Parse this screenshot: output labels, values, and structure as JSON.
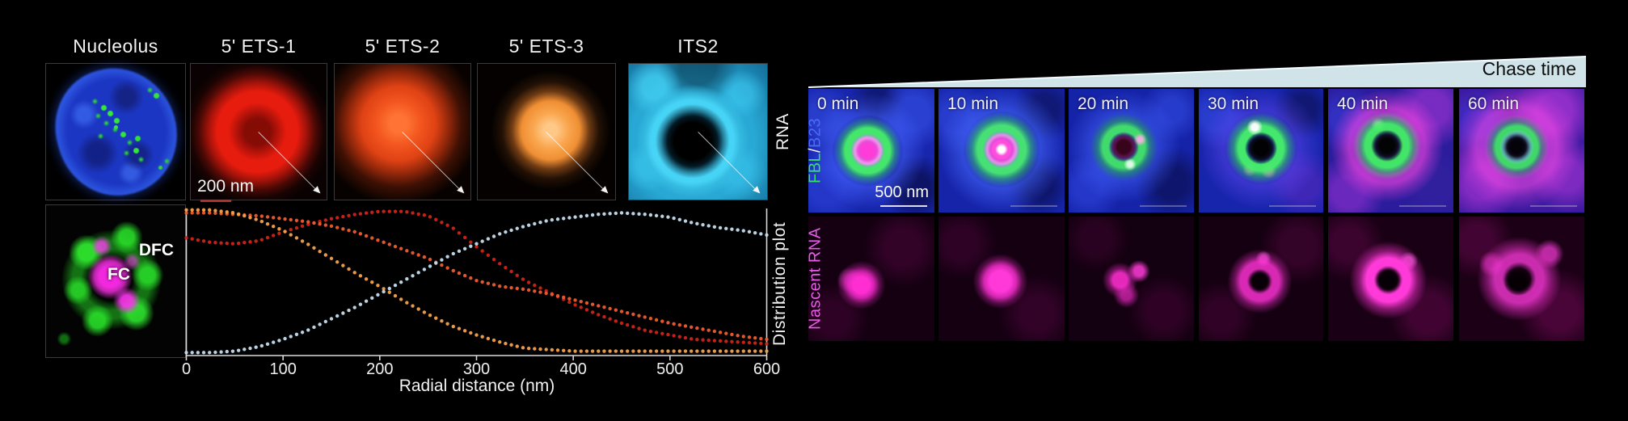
{
  "left": {
    "panel_titles": [
      "Nucleolus",
      "5' ETS-1",
      "5' ETS-2",
      "5' ETS-3",
      "ITS2"
    ],
    "row_labels": {
      "top": "RNA",
      "bottom": "Distribution plot"
    },
    "scale_bar_label": "200 nm",
    "inset_labels": {
      "dfc": "DFC",
      "fc": "FC"
    }
  },
  "right": {
    "header": "Chase time",
    "time_labels": [
      "0 min",
      "10 min",
      "20 min",
      "30 min",
      "40 min",
      "60 min"
    ],
    "top_row_label": {
      "part1": "FBL",
      "sep": " / ",
      "part2": "B23"
    },
    "bottom_row_label": "Nascent RNA",
    "scale_bar_label": "500 nm"
  },
  "colors": {
    "fbl_green": "#35e065",
    "b23_blue": "#4a6cf5",
    "nascent_magenta": "#e85ae8",
    "wedge_fill": "#cfe3e8",
    "scale_bar_200nm": "#b03228",
    "ets1_red": "#cf2318",
    "ets2_redorange": "#ee5b2e",
    "ets3_orange": "#f5a149",
    "its2_cyan": "#c3dcec"
  },
  "chart_data": {
    "type": "line",
    "style": "dotted",
    "title": "Distribution plot",
    "xlabel": "Radial distance (nm)",
    "ylabel": "",
    "xlim": [
      0,
      600
    ],
    "ylim": [
      0,
      1
    ],
    "xticks": [
      0,
      100,
      200,
      300,
      400,
      500,
      600
    ],
    "yticks": [],
    "grid": false,
    "legend": false,
    "x_nm": [
      0,
      25,
      50,
      75,
      100,
      125,
      150,
      175,
      200,
      225,
      250,
      275,
      300,
      325,
      350,
      375,
      400,
      425,
      450,
      475,
      500,
      525,
      550,
      575,
      600
    ],
    "series": [
      {
        "name": "5' ETS-1",
        "color": "#cf2318",
        "values": [
          0.8,
          0.77,
          0.76,
          0.78,
          0.84,
          0.89,
          0.93,
          0.96,
          0.98,
          0.98,
          0.95,
          0.87,
          0.74,
          0.62,
          0.51,
          0.43,
          0.35,
          0.28,
          0.22,
          0.17,
          0.14,
          0.11,
          0.1,
          0.09,
          0.08
        ]
      },
      {
        "name": "5' ETS-2",
        "color": "#ee5b2e",
        "values": [
          0.97,
          0.97,
          0.96,
          0.95,
          0.93,
          0.91,
          0.88,
          0.84,
          0.78,
          0.72,
          0.66,
          0.58,
          0.51,
          0.47,
          0.45,
          0.42,
          0.38,
          0.34,
          0.3,
          0.26,
          0.22,
          0.19,
          0.16,
          0.13,
          0.11
        ]
      },
      {
        "name": "5' ETS-3",
        "color": "#f5a149",
        "values": [
          0.99,
          0.99,
          0.97,
          0.92,
          0.85,
          0.76,
          0.66,
          0.56,
          0.47,
          0.37,
          0.28,
          0.2,
          0.14,
          0.09,
          0.05,
          0.04,
          0.03,
          0.03,
          0.03,
          0.03,
          0.03,
          0.03,
          0.03,
          0.03,
          0.03
        ]
      },
      {
        "name": "ITS2",
        "color": "#c3dcec",
        "values": [
          0.02,
          0.02,
          0.03,
          0.06,
          0.11,
          0.17,
          0.25,
          0.33,
          0.42,
          0.51,
          0.6,
          0.69,
          0.76,
          0.83,
          0.88,
          0.92,
          0.94,
          0.96,
          0.97,
          0.96,
          0.94,
          0.9,
          0.87,
          0.85,
          0.82
        ]
      }
    ]
  }
}
